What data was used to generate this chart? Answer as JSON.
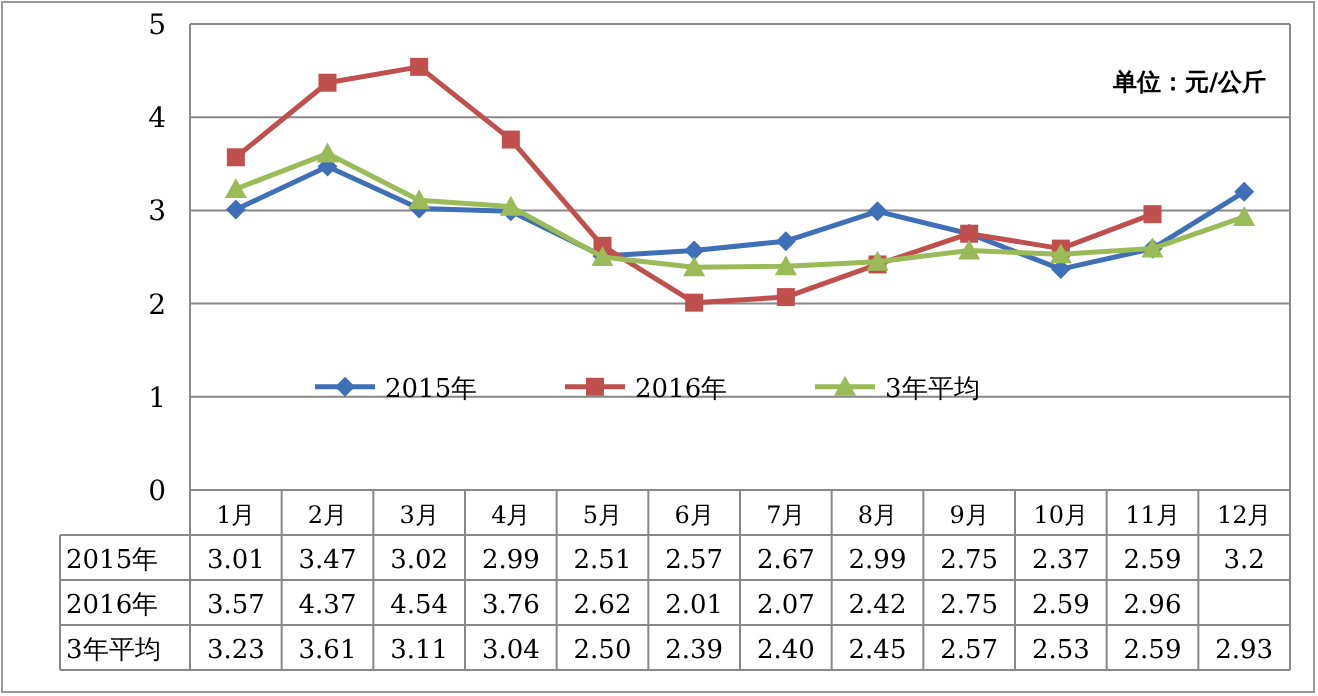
{
  "chart_data": {
    "type": "line",
    "categories": [
      "1月",
      "2月",
      "3月",
      "4月",
      "5月",
      "6月",
      "7月",
      "8月",
      "9月",
      "10月",
      "11月",
      "12月"
    ],
    "series": [
      {
        "name": "2015年",
        "color": "#3f6fb6",
        "marker": "diamond",
        "values": [
          3.01,
          3.47,
          3.02,
          2.99,
          2.51,
          2.57,
          2.67,
          2.99,
          2.75,
          2.37,
          2.59,
          3.2
        ],
        "value_labels": [
          "3.01",
          "3.47",
          "3.02",
          "2.99",
          "2.51",
          "2.57",
          "2.67",
          "2.99",
          "2.75",
          "2.37",
          "2.59",
          "3.2"
        ]
      },
      {
        "name": "2016年",
        "color": "#c0504d",
        "marker": "square",
        "values": [
          3.57,
          4.37,
          4.54,
          3.76,
          2.62,
          2.01,
          2.07,
          2.42,
          2.75,
          2.59,
          2.96,
          null
        ],
        "value_labels": [
          "3.57",
          "4.37",
          "4.54",
          "3.76",
          "2.62",
          "2.01",
          "2.07",
          "2.42",
          "2.75",
          "2.59",
          "2.96",
          null
        ]
      },
      {
        "name": "3年平均",
        "color": "#9bbb59",
        "marker": "triangle",
        "values": [
          3.23,
          3.61,
          3.11,
          3.04,
          2.5,
          2.39,
          2.4,
          2.45,
          2.57,
          2.53,
          2.59,
          2.93
        ],
        "value_labels": [
          "3.23",
          "3.61",
          "3.11",
          "3.04",
          "2.50",
          "2.39",
          "2.40",
          "2.45",
          "2.57",
          "2.53",
          "2.59",
          "2.93"
        ]
      }
    ],
    "ylim": [
      0,
      5
    ],
    "yticks": [
      0,
      1,
      2,
      3,
      4,
      5
    ],
    "grid": "y",
    "legend": "bottom",
    "line_style": "solid",
    "annotations": [
      "单位：元/公斤"
    ]
  }
}
